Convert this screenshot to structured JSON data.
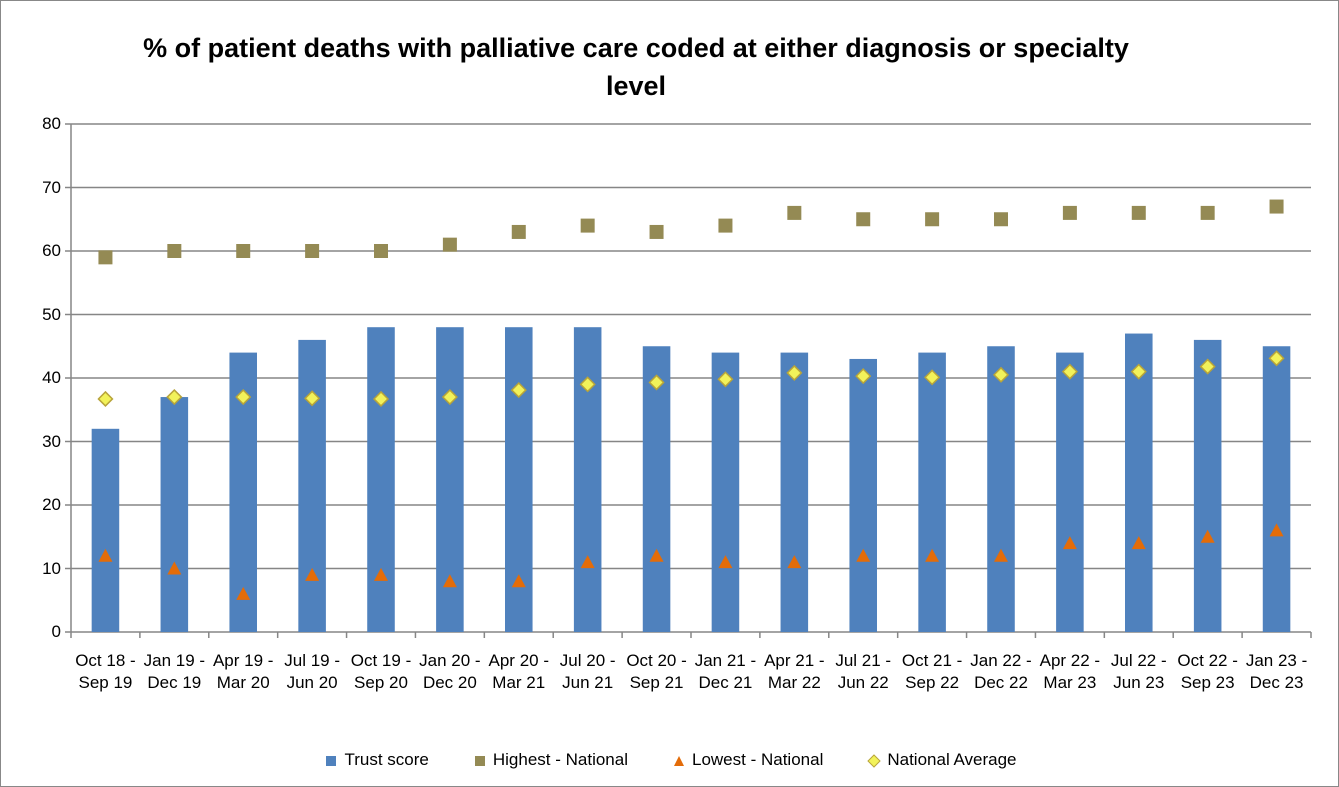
{
  "chart_data": {
    "type": "bar",
    "title": "% of patient deaths with palliative care coded at either diagnosis or specialty level",
    "categories": [
      "Oct 18 - Sep 19",
      "Jan 19 - Dec 19",
      "Apr 19 - Mar 20",
      "Jul 19 - Jun 20",
      "Oct 19 - Sep 20",
      "Jan 20 - Dec 20",
      "Apr 20 - Mar 21",
      "Jul 20 - Jun 21",
      "Oct 20 - Sep 21",
      "Jan 21 - Dec 21",
      "Apr 21 - Mar 22",
      "Jul 21 - Jun 22",
      "Oct 21 - Sep 22",
      "Jan 22 - Dec 22",
      "Apr 22 - Mar 23",
      "Jul 22 - Jun 23",
      "Oct 22 - Sep 23",
      "Jan 23 - Dec 23"
    ],
    "series": [
      {
        "name": "Trust score",
        "color": "#4f81bd",
        "marker": "bar",
        "values": [
          32,
          37,
          44,
          46,
          48,
          48,
          48,
          48,
          45,
          44,
          44,
          43,
          44,
          45,
          44,
          47,
          46,
          45
        ]
      },
      {
        "name": "Highest - National",
        "color": "#948a54",
        "marker": "square",
        "values": [
          59,
          60,
          60,
          60,
          60,
          61,
          63,
          64,
          63,
          64,
          66,
          65,
          65,
          65,
          66,
          66,
          66,
          67
        ]
      },
      {
        "name": "Lowest - National",
        "color": "#e36c09",
        "marker": "triangle",
        "values": [
          12,
          10,
          6,
          9,
          9,
          8,
          8,
          11,
          12,
          11,
          11,
          12,
          12,
          12,
          14,
          14,
          15,
          16
        ]
      },
      {
        "name": "National Average",
        "color": "#f2f25a",
        "marker": "diamond",
        "values": [
          36.7,
          37,
          37,
          36.8,
          36.7,
          37,
          38.1,
          39,
          39.3,
          39.8,
          40.8,
          40.3,
          40.1,
          40.5,
          41,
          41,
          41.8,
          43.1
        ]
      }
    ],
    "ylim": [
      0,
      80
    ],
    "yticks": [
      0,
      10,
      20,
      30,
      40,
      50,
      60,
      70,
      80
    ],
    "grid": true,
    "legend": "bottom"
  }
}
